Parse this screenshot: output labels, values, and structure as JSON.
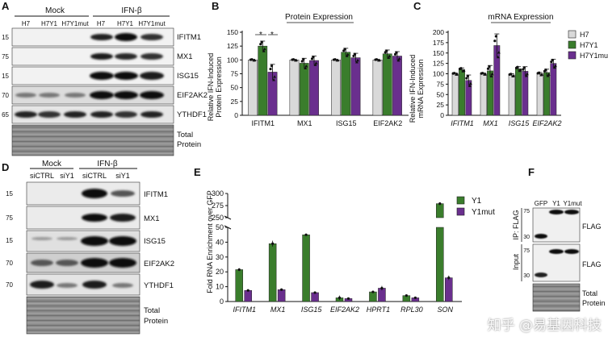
{
  "panel_letters": {
    "A": "A",
    "B": "B",
    "C": "C",
    "D": "D",
    "E": "E",
    "F": "F"
  },
  "colors": {
    "h7": "#d9d9d9",
    "h7y1": "#3a7d2c",
    "h7y1mut": "#6a2f8e",
    "band": "#1a1a1a",
    "membrane": "#e8e8e8"
  },
  "panel_a": {
    "group_labels": [
      "Mock",
      "IFN-β"
    ],
    "lane_labels": [
      "H7",
      "H7Y1",
      "H7Y1mut",
      "H7",
      "H7Y1",
      "H7Y1mut"
    ],
    "mw_labels": [
      "15",
      "75",
      "15",
      "70",
      "65"
    ],
    "blot_labels": [
      "IFITM1",
      "MX1",
      "ISG15",
      "EIF2AK2",
      "YTHDF1",
      "Total\nProtein"
    ],
    "total_line1": "Total",
    "total_line2": "Protein"
  },
  "panel_d": {
    "group_labels": [
      "Mock",
      "IFN-β"
    ],
    "lane_labels": [
      "siCTRL",
      "siY1",
      "siCTRL",
      "siY1"
    ],
    "mw_labels": [
      "15",
      "75",
      "15",
      "70",
      "70"
    ],
    "blot_labels": [
      "IFITM1",
      "MX1",
      "ISG15",
      "EIF2AK2",
      "YTHDF1"
    ],
    "total_line1": "Total",
    "total_line2": "Protein"
  },
  "panel_f": {
    "lane_labels": [
      "GFP",
      "Y1",
      "Y1mut"
    ],
    "ip_label": "IP: FLAG",
    "input_label": "Input",
    "mw_ip": [
      "75",
      "30"
    ],
    "mw_input": [
      "75",
      "30"
    ],
    "flag_label": "FLAG",
    "total_line1": "Total",
    "total_line2": "Protein"
  },
  "legend_bc": [
    "H7",
    "H7Y1",
    "H7Y1mut"
  ],
  "legend_e": [
    "Y1",
    "Y1mut"
  ],
  "significance_marks": [
    "*",
    "*"
  ],
  "watermark": "知乎 @易基因科技",
  "chart_data": [
    {
      "id": "B",
      "type": "bar",
      "title": "Protein Expression",
      "ylabel": "Relative IFN-Induced Protein Expression",
      "ylabel_line1": "Relative IFN-Induced",
      "ylabel_line2": "Protein Expression",
      "ylim": [
        0,
        150
      ],
      "yticks": [
        "0",
        "25",
        "50",
        "75",
        "100",
        "125",
        "150"
      ],
      "categories": [
        "IFITM1",
        "MX1",
        "ISG15",
        "EIF2AK2"
      ],
      "series": [
        {
          "name": "H7",
          "values": [
            100,
            100,
            100,
            100
          ],
          "errors": [
            1,
            1,
            1,
            1
          ]
        },
        {
          "name": "H7Y1",
          "values": [
            125,
            94,
            114,
            111
          ],
          "errors": [
            9,
            9,
            7,
            7
          ]
        },
        {
          "name": "H7Y1mut",
          "values": [
            78,
            99,
            104,
            107
          ],
          "errors": [
            14,
            8,
            8,
            8
          ]
        }
      ]
    },
    {
      "id": "C",
      "type": "bar",
      "title": "mRNA Expression",
      "ylabel": "Relative IFN-Induced mRNA Expression",
      "ylabel_line1": "Relative IFN-Induced",
      "ylabel_line2": "mRNA Expression",
      "ylim": [
        0,
        200
      ],
      "yticks": [
        "0",
        "25",
        "50",
        "75",
        "100",
        "125",
        "150",
        "175",
        "200"
      ],
      "categories": [
        "IFITM1",
        "MX1",
        "ISG15",
        "EIF2AK2"
      ],
      "series": [
        {
          "name": "H7",
          "values": [
            100,
            100,
            97,
            100
          ],
          "errors": [
            2,
            2,
            3,
            3
          ]
        },
        {
          "name": "H7Y1",
          "values": [
            110,
            107,
            112,
            103
          ],
          "errors": [
            4,
            13,
            5,
            8
          ]
        },
        {
          "name": "H7Y1mut",
          "values": [
            84,
            168,
            106,
            125
          ],
          "errors": [
            13,
            28,
            11,
            10
          ]
        }
      ]
    },
    {
      "id": "E",
      "type": "bar",
      "ylabel": "Fold RNA Enrichment over GFP",
      "ylim_lower": [
        0,
        50
      ],
      "ylim_upper": [
        250,
        300
      ],
      "yticks_lower": [
        "0",
        "10",
        "20",
        "30",
        "40",
        "50"
      ],
      "yticks_upper": [
        "250",
        "275",
        "300"
      ],
      "categories": [
        "IFITM1",
        "MX1",
        "ISG15",
        "EIF2AK2",
        "HPRT1",
        "RPL30",
        "SON"
      ],
      "series": [
        {
          "name": "Y1",
          "values": [
            21.5,
            39,
            45,
            2.5,
            6.5,
            4,
            279
          ],
          "errors": [
            1,
            2,
            0.5,
            1.5,
            0.8,
            0.4,
            3
          ]
        },
        {
          "name": "Y1mut",
          "values": [
            7.5,
            8,
            6,
            2,
            9,
            2.5,
            16
          ],
          "errors": [
            0.6,
            0.4,
            0.3,
            0.5,
            1.5,
            0.3,
            1.5
          ]
        }
      ]
    }
  ]
}
